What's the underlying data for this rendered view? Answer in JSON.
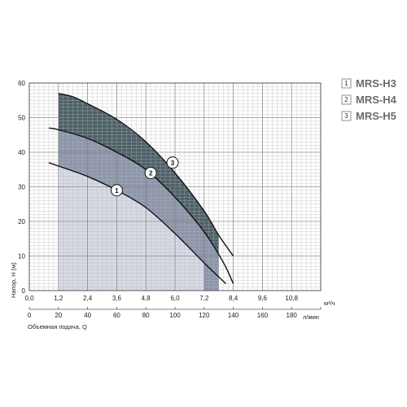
{
  "chart_data": {
    "type": "area",
    "title": "",
    "ylabel": "Напор, H (м)",
    "xlabel": "Объемная подача, Q",
    "x_unit_top": "м³/ч",
    "x_unit_bottom": "л/мин",
    "ylim": [
      0,
      60
    ],
    "xlim": [
      0,
      12
    ],
    "y_ticks": [
      "0",
      "10",
      "20",
      "30",
      "40",
      "50",
      "60"
    ],
    "x_ticks_top": [
      "0,0",
      "1,2",
      "2,4",
      "3,6",
      "4,8",
      "6,0",
      "7,2",
      "8,4",
      "9,6",
      "10,8"
    ],
    "x_ticks_bottom": [
      "0",
      "20",
      "40",
      "60",
      "80",
      "100",
      "120",
      "140",
      "160",
      "180"
    ],
    "grid": true,
    "legend_position": "right",
    "series": [
      {
        "name": "MRS-H3",
        "marker": "1",
        "fill": "#d6dae4",
        "work_range": [
          1.2,
          7.2
        ],
        "x": [
          0.8,
          1.2,
          2.4,
          3.6,
          4.8,
          6.0,
          7.2,
          8.1
        ],
        "y": [
          37,
          36,
          33,
          29,
          24,
          16.5,
          8,
          2
        ]
      },
      {
        "name": "MRS-H4",
        "marker": "2",
        "fill": "#8c95ab",
        "work_range": [
          1.2,
          7.8
        ],
        "x": [
          0.8,
          1.2,
          2.4,
          3.6,
          4.8,
          6.0,
          7.2,
          8.0,
          8.4
        ],
        "y": [
          47,
          46.5,
          44,
          40,
          35,
          27,
          17,
          8,
          2
        ]
      },
      {
        "name": "MRS-H5",
        "marker": "3",
        "fill": "#4d6167",
        "work_range": [
          1.2,
          7.8
        ],
        "x": [
          1.2,
          1.8,
          2.4,
          3.6,
          4.8,
          6.0,
          7.2,
          7.8,
          8.4
        ],
        "y": [
          57,
          56,
          54,
          49.5,
          43,
          34,
          23,
          16,
          10
        ]
      }
    ],
    "markers": [
      {
        "label": "1",
        "x": 3.6,
        "y": 29
      },
      {
        "label": "2",
        "x": 5.0,
        "y": 34
      },
      {
        "label": "3",
        "x": 5.9,
        "y": 37
      }
    ]
  }
}
